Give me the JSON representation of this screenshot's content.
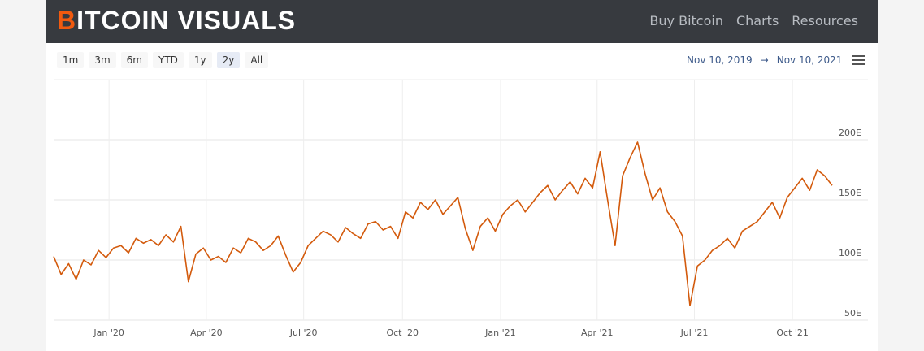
{
  "header": {
    "logo": "BITCOIN VISUALS",
    "nav": [
      "Buy Bitcoin",
      "Charts",
      "Resources"
    ]
  },
  "toolbar": {
    "ranges": [
      "1m",
      "3m",
      "6m",
      "YTD",
      "1y",
      "2y",
      "All"
    ],
    "selected_range": 5,
    "date_from": "Nov 10, 2019",
    "arrow": "→",
    "date_to": "Nov 10, 2021"
  },
  "chart_data": {
    "type": "line",
    "color": "#d35a0c",
    "grid": true,
    "series": [
      {
        "values": [
          103,
          88,
          97,
          84,
          100,
          96,
          108,
          102,
          110,
          112,
          106,
          118,
          114,
          117,
          112,
          121,
          115,
          128,
          82,
          105,
          110,
          100,
          103,
          98,
          110,
          106,
          118,
          115,
          108,
          112,
          120,
          104,
          90,
          98,
          112,
          118,
          124,
          121,
          115,
          127,
          122,
          118,
          130,
          132,
          125,
          128,
          118,
          140,
          135,
          148,
          142,
          150,
          138,
          145,
          152,
          126,
          108,
          128,
          135,
          124,
          138,
          145,
          150,
          140,
          148,
          156,
          162,
          150,
          158,
          165,
          155,
          168,
          160,
          190,
          150,
          112,
          170,
          185,
          198,
          172,
          150,
          160,
          140,
          132,
          120,
          62,
          95,
          100,
          108,
          112,
          118,
          110,
          124,
          128,
          132,
          140,
          148,
          135,
          152,
          160,
          168,
          158,
          175,
          170,
          162
        ]
      }
    ],
    "xlim": [
      0,
      104
    ],
    "xticks": [
      {
        "value": 7.4,
        "label": "Jan '20"
      },
      {
        "value": 20.4,
        "label": "Apr '20"
      },
      {
        "value": 33.4,
        "label": "Jul '20"
      },
      {
        "value": 46.6,
        "label": "Oct '20"
      },
      {
        "value": 59.7,
        "label": "Jan '21"
      },
      {
        "value": 72.6,
        "label": "Apr '21"
      },
      {
        "value": 85.6,
        "label": "Jul '21"
      },
      {
        "value": 98.7,
        "label": "Oct '21"
      }
    ],
    "ylim": [
      50,
      250
    ],
    "yticks": [
      {
        "value": 50,
        "label": "50E"
      },
      {
        "value": 100,
        "label": "100E"
      },
      {
        "value": 150,
        "label": "150E"
      },
      {
        "value": 200,
        "label": "200E"
      }
    ]
  }
}
